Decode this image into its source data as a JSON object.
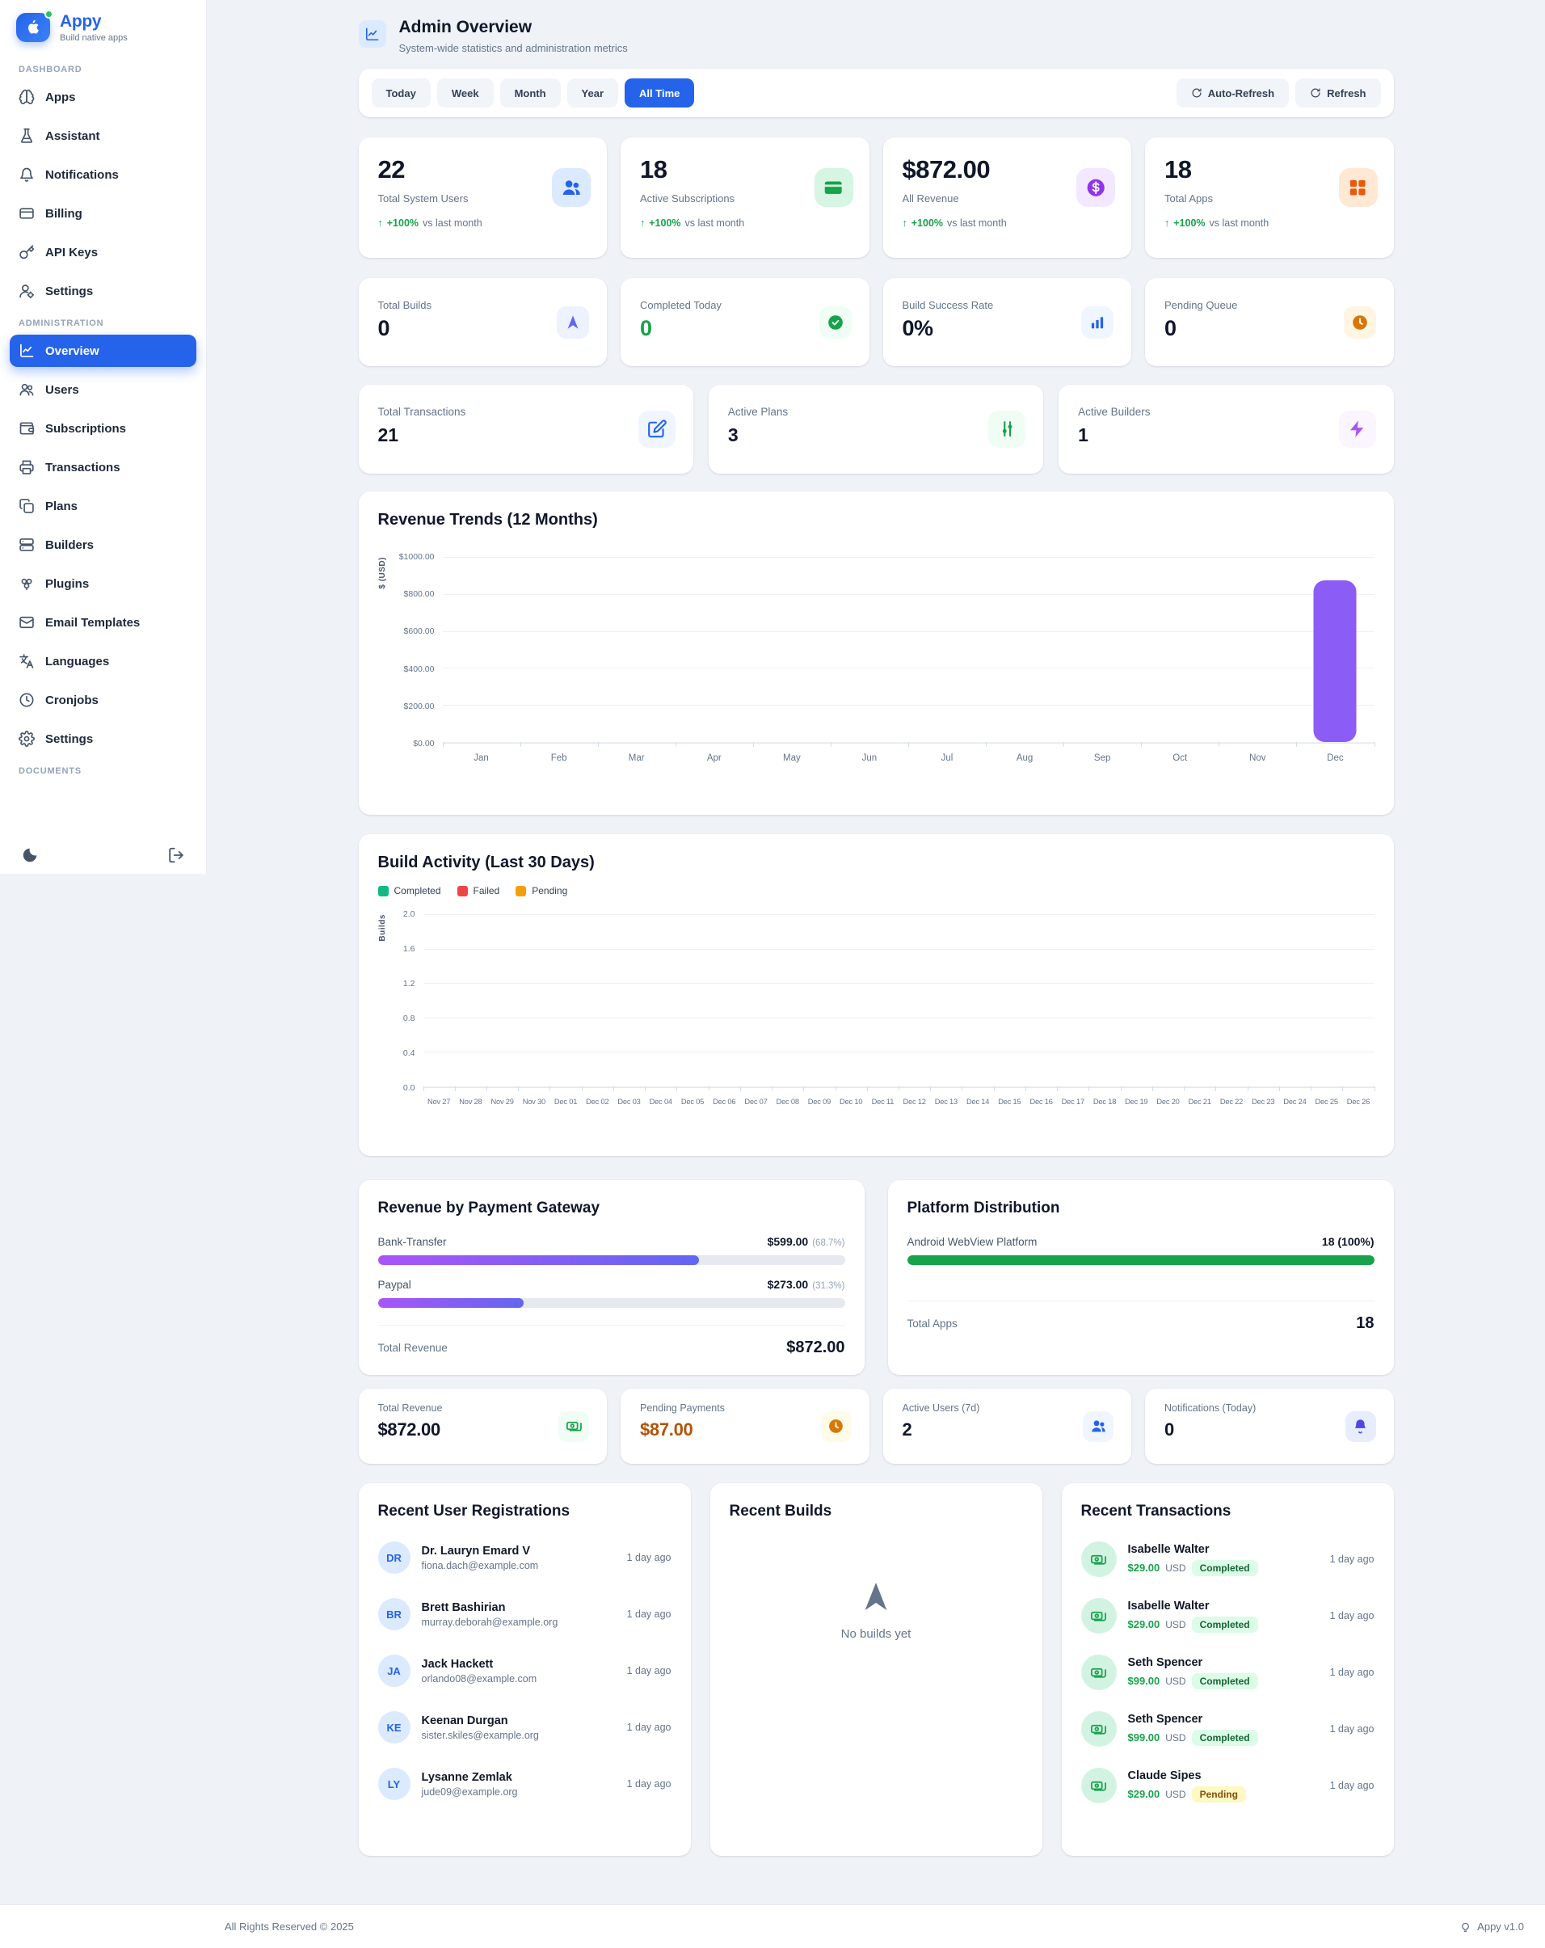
{
  "app": {
    "name": "Appy",
    "tagline": "Build native apps"
  },
  "sidebar": {
    "sections": [
      {
        "label": "DASHBOARD",
        "items": [
          {
            "label": "Apps",
            "icon": "apps-icon"
          },
          {
            "label": "Assistant",
            "icon": "assistant-icon"
          },
          {
            "label": "Notifications",
            "icon": "notifications-icon"
          },
          {
            "label": "Billing",
            "icon": "billing-icon"
          },
          {
            "label": "API Keys",
            "icon": "api-keys-icon"
          },
          {
            "label": "Settings",
            "icon": "user-settings-icon"
          }
        ]
      },
      {
        "label": "ADMINISTRATION",
        "items": [
          {
            "label": "Overview",
            "icon": "overview-icon",
            "active": true
          },
          {
            "label": "Users",
            "icon": "users-icon"
          },
          {
            "label": "Subscriptions",
            "icon": "subscriptions-icon"
          },
          {
            "label": "Transactions",
            "icon": "transactions-icon"
          },
          {
            "label": "Plans",
            "icon": "plans-icon"
          },
          {
            "label": "Builders",
            "icon": "builders-icon"
          },
          {
            "label": "Plugins",
            "icon": "plugins-icon"
          },
          {
            "label": "Email Templates",
            "icon": "email-icon"
          },
          {
            "label": "Languages",
            "icon": "languages-icon"
          },
          {
            "label": "Cronjobs",
            "icon": "cronjobs-icon"
          },
          {
            "label": "Settings",
            "icon": "settings-icon"
          }
        ]
      },
      {
        "label": "DOCUMENTS",
        "items": []
      }
    ]
  },
  "header": {
    "title": "Admin Overview",
    "subtitle": "System-wide statistics and administration metrics"
  },
  "filters": {
    "ranges": [
      "Today",
      "Week",
      "Month",
      "Year",
      "All Time"
    ],
    "active": "All Time",
    "auto_refresh_label": "Auto-Refresh",
    "refresh_label": "Refresh"
  },
  "stats_row1": [
    {
      "value": "22",
      "label": "Total System Users",
      "change": "+100%",
      "change_note": "vs last month",
      "icon": "users-solid-icon",
      "accent": "#2563eb",
      "accent_bg": "#dbeafe"
    },
    {
      "value": "18",
      "label": "Active Subscriptions",
      "change": "+100%",
      "change_note": "vs last month",
      "icon": "credit-card-solid-icon",
      "accent": "#16a34a",
      "accent_bg": "#d6f5e3"
    },
    {
      "value": "$872.00",
      "label": "All Revenue",
      "change": "+100%",
      "change_note": "vs last month",
      "icon": "dollar-icon",
      "accent": "#9333ea",
      "accent_bg": "#f3e8ff"
    },
    {
      "value": "18",
      "label": "Total Apps",
      "change": "+100%",
      "change_note": "vs last month",
      "icon": "grid-icon",
      "accent": "#ea580c",
      "accent_bg": "#ffe8d4"
    }
  ],
  "stats_row2": [
    {
      "label": "Total Builds",
      "value": "0",
      "value_color": "#0f172a",
      "icon": "nav-arrow-icon",
      "accent": "#6366f1",
      "accent_bg": "#eef2ff"
    },
    {
      "label": "Completed Today",
      "value": "0",
      "value_color": "#16a34a",
      "icon": "check-circle-icon",
      "accent": "#16a34a",
      "accent_bg": "#f0fdf4"
    },
    {
      "label": "Build Success Rate",
      "value": "0%",
      "value_color": "#0f172a",
      "icon": "bar-chart-icon",
      "accent": "#2563eb",
      "accent_bg": "#eff6ff"
    },
    {
      "label": "Pending Queue",
      "value": "0",
      "value_color": "#0f172a",
      "icon": "clock-solid-icon",
      "accent": "#d97706",
      "accent_bg": "#fef6e3"
    }
  ],
  "stats_row3": [
    {
      "label": "Total Transactions",
      "value": "21",
      "icon": "edit-icon",
      "accent": "#2563eb",
      "accent_bg": "#eff6ff"
    },
    {
      "label": "Active Plans",
      "value": "3",
      "icon": "sliders-icon",
      "accent": "#16a34a",
      "accent_bg": "#f0fdf4"
    },
    {
      "label": "Active Builders",
      "value": "1",
      "icon": "zap-icon",
      "accent": "#a855f7",
      "accent_bg": "#faf5ff"
    }
  ],
  "chart_data": [
    {
      "type": "bar",
      "title": "Revenue Trends (12 Months)",
      "categories": [
        "Jan",
        "Feb",
        "Mar",
        "Apr",
        "May",
        "Jun",
        "Jul",
        "Aug",
        "Sep",
        "Oct",
        "Nov",
        "Dec"
      ],
      "values": [
        0,
        0,
        0,
        0,
        0,
        0,
        0,
        0,
        0,
        0,
        0,
        872
      ],
      "xlabel": "",
      "ylabel": "$ (USD)",
      "ylim": [
        0,
        1000
      ],
      "yticks": [
        "$0.00",
        "$200.00",
        "$400.00",
        "$600.00",
        "$800.00",
        "$1000.00"
      ],
      "bar_color": "#8b5cf6",
      "grid": true,
      "legend_position": "none"
    },
    {
      "type": "bar",
      "title": "Build Activity (Last 30 Days)",
      "categories": [
        "Nov 27",
        "Nov 28",
        "Nov 29",
        "Nov 30",
        "Dec 01",
        "Dec 02",
        "Dec 03",
        "Dec 04",
        "Dec 05",
        "Dec 06",
        "Dec 07",
        "Dec 08",
        "Dec 09",
        "Dec 10",
        "Dec 11",
        "Dec 12",
        "Dec 13",
        "Dec 14",
        "Dec 15",
        "Dec 16",
        "Dec 17",
        "Dec 18",
        "Dec 19",
        "Dec 20",
        "Dec 21",
        "Dec 22",
        "Dec 23",
        "Dec 24",
        "Dec 25",
        "Dec 26"
      ],
      "series": [
        {
          "name": "Completed",
          "color": "#10b981",
          "values": [
            0,
            0,
            0,
            0,
            0,
            0,
            0,
            0,
            0,
            0,
            0,
            0,
            0,
            0,
            0,
            0,
            0,
            0,
            0,
            0,
            0,
            0,
            0,
            0,
            0,
            0,
            0,
            0,
            0,
            0
          ]
        },
        {
          "name": "Failed",
          "color": "#ef4444",
          "values": [
            0,
            0,
            0,
            0,
            0,
            0,
            0,
            0,
            0,
            0,
            0,
            0,
            0,
            0,
            0,
            0,
            0,
            0,
            0,
            0,
            0,
            0,
            0,
            0,
            0,
            0,
            0,
            0,
            0,
            0
          ]
        },
        {
          "name": "Pending",
          "color": "#f59e0b",
          "values": [
            0,
            0,
            0,
            0,
            0,
            0,
            0,
            0,
            0,
            0,
            0,
            0,
            0,
            0,
            0,
            0,
            0,
            0,
            0,
            0,
            0,
            0,
            0,
            0,
            0,
            0,
            0,
            0,
            0,
            0
          ]
        }
      ],
      "xlabel": "",
      "ylabel": "Builds",
      "ylim": [
        0,
        2
      ],
      "yticks": [
        "0.0",
        "0.4",
        "0.8",
        "1.2",
        "1.6",
        "2.0"
      ],
      "grid": true,
      "legend_position": "top-left"
    }
  ],
  "gateway": {
    "title": "Revenue by Payment Gateway",
    "rows": [
      {
        "label": "Bank-Transfer",
        "amount": "$599.00",
        "percent": "(68.7%)",
        "pct": 68.7
      },
      {
        "label": "Paypal",
        "amount": "$273.00",
        "percent": "(31.3%)",
        "pct": 31.3
      }
    ],
    "total_label": "Total Revenue",
    "total_value": "$872.00"
  },
  "platform": {
    "title": "Platform Distribution",
    "rows": [
      {
        "label": "Android WebView Platform",
        "amount": "18 (100%)",
        "pct": 100
      }
    ],
    "total_label": "Total Apps",
    "total_value": "18"
  },
  "mini_stats": [
    {
      "label": "Total Revenue",
      "value": "$872.00",
      "value_color": "#0f172a",
      "icon": "cash-icon",
      "accent": "#16a34a",
      "accent_bg": "#f0fdf4"
    },
    {
      "label": "Pending Payments",
      "value": "$87.00",
      "value_color": "#b45309",
      "icon": "clock-solid-icon",
      "accent": "#d97706",
      "accent_bg": "#fefce8"
    },
    {
      "label": "Active Users (7d)",
      "value": "2",
      "value_color": "#0f172a",
      "icon": "users-solid-icon",
      "accent": "#2563eb",
      "accent_bg": "#eff6ff"
    },
    {
      "label": "Notifications (Today)",
      "value": "0",
      "value_color": "#0f172a",
      "icon": "bell-solid-icon",
      "accent": "#4f46e5",
      "accent_bg": "#e8edfd"
    }
  ],
  "registrations": {
    "title": "Recent User Registrations",
    "items": [
      {
        "initials": "DR",
        "name": "Dr. Lauryn Emard V",
        "email": "fiona.dach@example.com",
        "time": "1 day ago"
      },
      {
        "initials": "BR",
        "name": "Brett Bashirian",
        "email": "murray.deborah@example.org",
        "time": "1 day ago"
      },
      {
        "initials": "JA",
        "name": "Jack Hackett",
        "email": "orlando08@example.com",
        "time": "1 day ago"
      },
      {
        "initials": "KE",
        "name": "Keenan Durgan",
        "email": "sister.skiles@example.org",
        "time": "1 day ago"
      },
      {
        "initials": "LY",
        "name": "Lysanne Zemlak",
        "email": "jude09@example.org",
        "time": "1 day ago"
      }
    ]
  },
  "builds_panel": {
    "title": "Recent Builds",
    "empty_text": "No builds yet"
  },
  "transactions": {
    "title": "Recent Transactions",
    "items": [
      {
        "name": "Isabelle Walter",
        "amount": "$29.00",
        "currency": "USD",
        "status": "Completed",
        "time": "1 day ago"
      },
      {
        "name": "Isabelle Walter",
        "amount": "$29.00",
        "currency": "USD",
        "status": "Completed",
        "time": "1 day ago"
      },
      {
        "name": "Seth Spencer",
        "amount": "$99.00",
        "currency": "USD",
        "status": "Completed",
        "time": "1 day ago"
      },
      {
        "name": "Seth Spencer",
        "amount": "$99.00",
        "currency": "USD",
        "status": "Completed",
        "time": "1 day ago"
      },
      {
        "name": "Claude Sipes",
        "amount": "$29.00",
        "currency": "USD",
        "status": "Pending",
        "time": "1 day ago"
      }
    ]
  },
  "footer": {
    "left": "All Rights Reserved © 2025",
    "right": "Appy v1.0"
  }
}
